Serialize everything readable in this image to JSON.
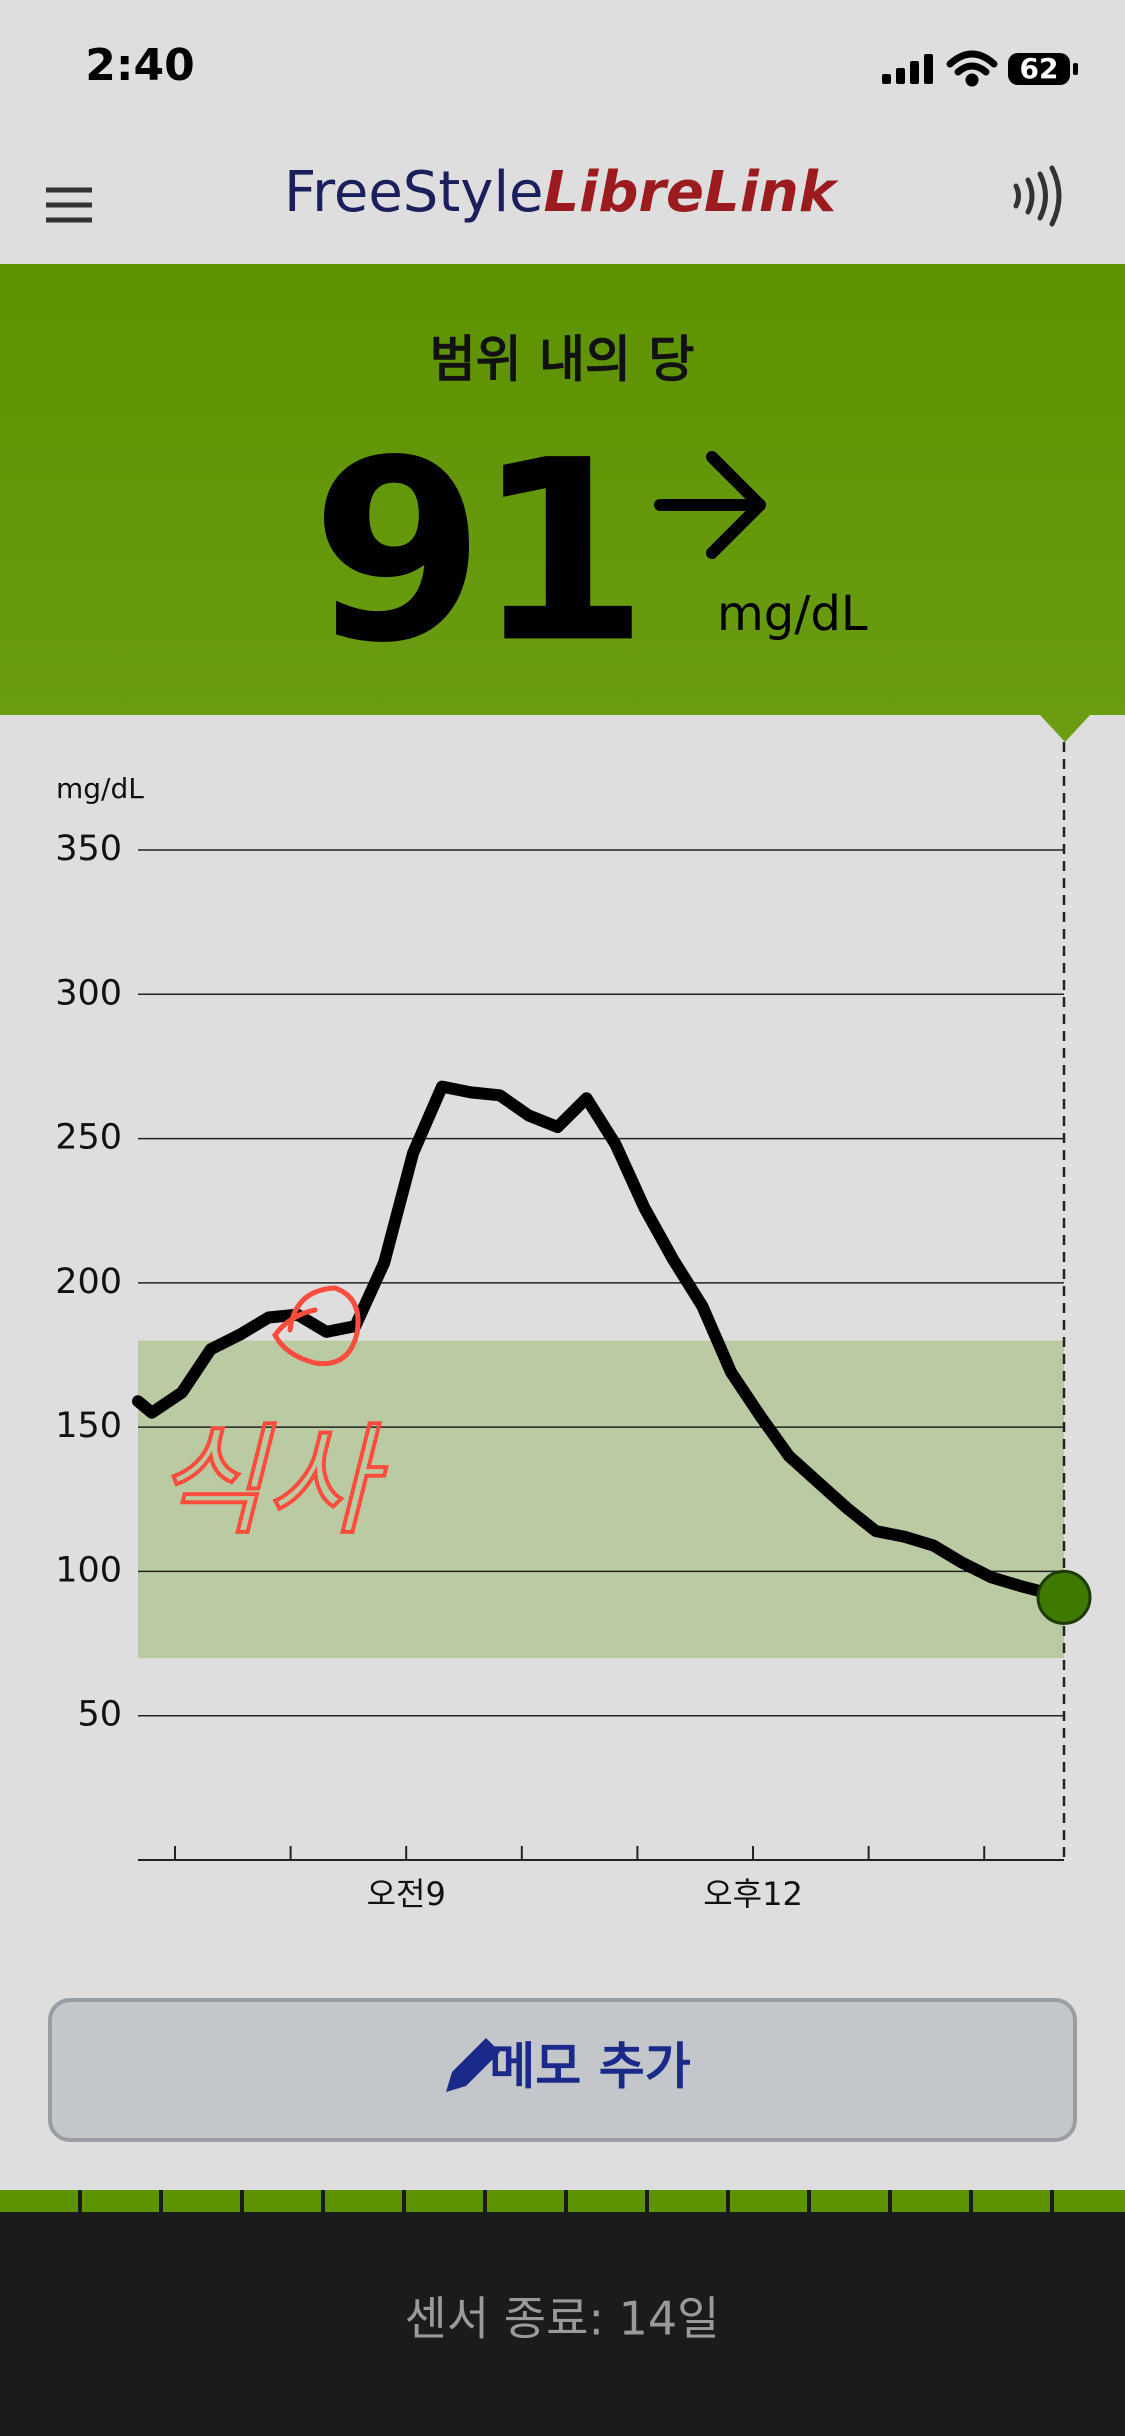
{
  "status_bar": {
    "time": "2:40",
    "battery": "62"
  },
  "header": {
    "logo_part1": "FreeStyle",
    "logo_part2": "LibreLink"
  },
  "banner": {
    "label": "범위 내의 당",
    "value": 91,
    "unit": "mg/dL"
  },
  "chart_data": {
    "type": "line",
    "y_label": "mg/dL",
    "x": [
      6.68,
      6.8,
      7.06,
      7.31,
      7.56,
      7.81,
      8.06,
      8.31,
      8.56,
      8.81,
      9.06,
      9.31,
      9.56,
      9.81,
      10.06,
      10.31,
      10.56,
      10.81,
      11.06,
      11.31,
      11.56,
      11.81,
      12.06,
      12.31,
      12.56,
      12.81,
      13.06,
      13.31,
      13.56,
      13.81,
      14.06,
      14.31,
      14.69
    ],
    "values": [
      159,
      155,
      162,
      177,
      182,
      188,
      189,
      183,
      185,
      207,
      245,
      268,
      266,
      265,
      258,
      254,
      264,
      248,
      226,
      208,
      192,
      169,
      154,
      140,
      131,
      122,
      114,
      112,
      109,
      103,
      98,
      95,
      91
    ],
    "color": "#000000",
    "point_color": "#3f7a00",
    "target_range": [
      70,
      180
    ],
    "target_color": "#bacba4",
    "xlim": [
      6.68,
      14.69
    ],
    "xticks": [
      {
        "value": 9,
        "label": "오전9"
      },
      {
        "value": 12,
        "label": "오후12"
      }
    ],
    "xminor_ticks": [
      7,
      8,
      10,
      11,
      13,
      14
    ],
    "ylim": [
      0,
      350
    ],
    "yticks": [
      50,
      100,
      150,
      200,
      250,
      300,
      350
    ],
    "grid": true,
    "annotation": "식사"
  },
  "memo_button": {
    "label": "메모 추가"
  },
  "footer": {
    "sensor_status": "센서 종료: 14일"
  }
}
